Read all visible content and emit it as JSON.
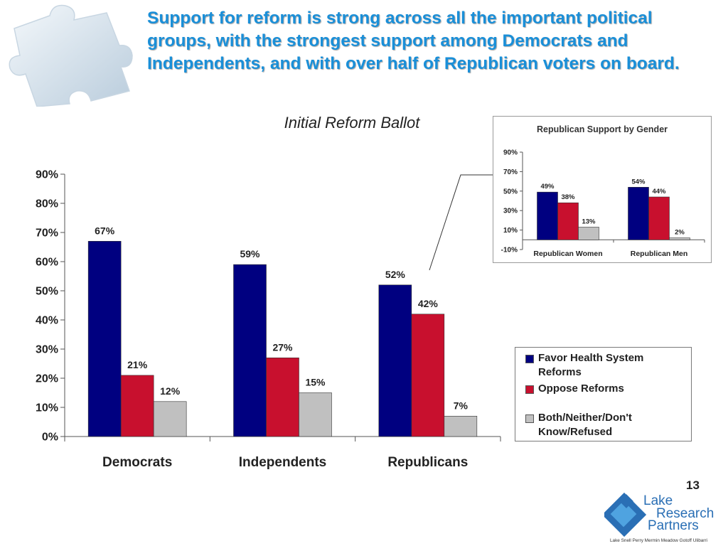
{
  "headline": "Support for reform is strong across all the important political groups, with the strongest support among Democrats and Independents, and with over half of Republican voters on board.",
  "page_number": "13",
  "colors": {
    "favor": "#000080",
    "oppose": "#c8102e",
    "both": "#c0c0c0",
    "headline": "#1a8fd8"
  },
  "logo": {
    "line1": "Lake",
    "line2": "Research",
    "line3": "Partners",
    "partners": [
      "Lake",
      "Snell",
      "Perry",
      "Mermin",
      "Meadow",
      "Gotoff",
      "Ulibarri"
    ]
  },
  "legend": {
    "items": [
      {
        "label": "Favor Health System Reforms",
        "color": "#000080"
      },
      {
        "label": "Oppose Reforms",
        "color": "#c8102e"
      },
      {
        "label": "Both/Neither/Don't Know/Refused",
        "color": "#c0c0c0"
      }
    ]
  },
  "chart_data": [
    {
      "type": "bar",
      "title": "Initial Reform Ballot",
      "categories": [
        "Democrats",
        "Independents",
        "Republicans"
      ],
      "series": [
        {
          "name": "Favor Health System Reforms",
          "values": [
            67,
            59,
            52
          ]
        },
        {
          "name": "Oppose Reforms",
          "values": [
            21,
            27,
            42
          ]
        },
        {
          "name": "Both/Neither/Don't Know/Refused",
          "values": [
            12,
            15,
            7
          ]
        }
      ],
      "data_labels": [
        [
          "67%",
          "59%",
          "52%"
        ],
        [
          "21%",
          "27%",
          "42%"
        ],
        [
          "12%",
          "15%",
          "7%"
        ]
      ],
      "ylim": [
        0,
        90
      ],
      "yticks": [
        "0%",
        "10%",
        "20%",
        "30%",
        "40%",
        "50%",
        "60%",
        "70%",
        "80%",
        "90%"
      ],
      "grid": false,
      "legend_position": "right"
    },
    {
      "type": "bar",
      "title": "Republican Support by Gender",
      "categories": [
        "Republican Women",
        "Republican Men"
      ],
      "series": [
        {
          "name": "Favor Health System Reforms",
          "values": [
            49,
            54
          ]
        },
        {
          "name": "Oppose Reforms",
          "values": [
            38,
            44
          ]
        },
        {
          "name": "Both/Neither/Don't Know/Refused",
          "values": [
            13,
            2
          ]
        }
      ],
      "data_labels": [
        [
          "49%",
          "54%"
        ],
        [
          "38%",
          "44%"
        ],
        [
          "13%",
          "2%"
        ]
      ],
      "ylim": [
        -10,
        90
      ],
      "yticks": [
        "-10%",
        "10%",
        "30%",
        "50%",
        "70%",
        "90%"
      ],
      "grid": false,
      "legend_position": "none"
    }
  ]
}
